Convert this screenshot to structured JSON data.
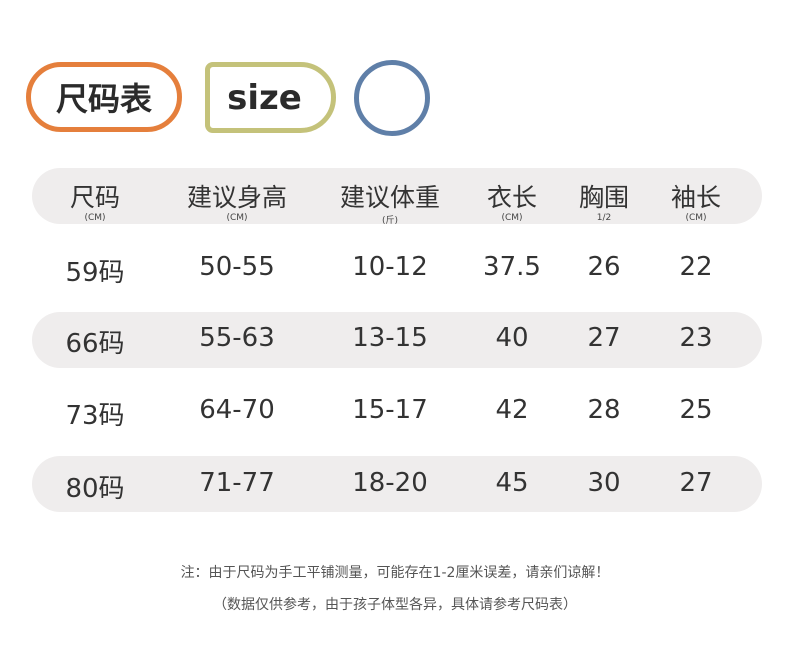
{
  "header": {
    "title": "尺码表",
    "size_label": "size",
    "colors": {
      "orange": "#e57f3c",
      "olive": "#c4c27a",
      "blue": "#5f7fa8",
      "band": "#efeded"
    }
  },
  "table": {
    "columns": [
      {
        "label": "尺码",
        "unit": "(CM)"
      },
      {
        "label": "建议身高",
        "unit": "(CM)"
      },
      {
        "label": "建议体重",
        "unit": "(斤)"
      },
      {
        "label": "衣长",
        "unit": "(CM)"
      },
      {
        "label": "胸围",
        "unit": "1/2"
      },
      {
        "label": "袖长",
        "unit": "(CM)"
      }
    ],
    "rows": [
      [
        "59码",
        "50-55",
        "10-12",
        "37.5",
        "26",
        "22"
      ],
      [
        "66码",
        "55-63",
        "13-15",
        "40",
        "27",
        "23"
      ],
      [
        "73码",
        "64-70",
        "15-17",
        "42",
        "28",
        "25"
      ],
      [
        "80码",
        "71-77",
        "18-20",
        "45",
        "30",
        "27"
      ]
    ]
  },
  "notes": {
    "line1": "注：由于尺码为手工平铺测量，可能存在1-2厘米误差，请亲们谅解！",
    "line2": "（数据仅供参考，由于孩子体型各异，具体请参考尺码表）"
  }
}
